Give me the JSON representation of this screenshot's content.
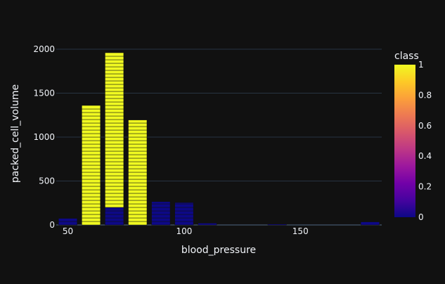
{
  "chart_data": {
    "type": "bar",
    "xlabel": "blood_pressure",
    "ylabel": "packed_cell_volume",
    "x_ticks": [
      "50",
      "100",
      "150"
    ],
    "y_ticks": [
      "0",
      "500",
      "1000",
      "1500",
      "2000"
    ],
    "xlim": [
      45,
      185
    ],
    "ylim": [
      0,
      2080
    ],
    "grid": true,
    "colorbar": {
      "title": "class",
      "range": [
        0,
        1
      ],
      "ticks": [
        "0",
        "0.2",
        "0.4",
        "0.6",
        "0.8",
        "1"
      ],
      "colorscale": [
        "#0d0887",
        "#46039f",
        "#7201a8",
        "#9c179e",
        "#bd3786",
        "#d8576b",
        "#ed7953",
        "#fb9f3a",
        "#fdca26",
        "#f0f921"
      ]
    },
    "bars": [
      {
        "x": 50,
        "class": 0,
        "stack": [
          {
            "class": 0,
            "value": 75
          }
        ]
      },
      {
        "x": 60,
        "stack": [
          {
            "class": 1,
            "value": 1360
          }
        ]
      },
      {
        "x": 70,
        "stack": [
          {
            "class": 0,
            "value": 200
          },
          {
            "class": 1,
            "value": 1760
          }
        ]
      },
      {
        "x": 80,
        "stack": [
          {
            "class": 1,
            "value": 1195
          }
        ]
      },
      {
        "x": 90,
        "stack": [
          {
            "class": 0,
            "value": 265
          }
        ]
      },
      {
        "x": 100,
        "stack": [
          {
            "class": 0,
            "value": 255
          }
        ]
      },
      {
        "x": 110,
        "stack": [
          {
            "class": 0,
            "value": 20
          }
        ]
      },
      {
        "x": 140,
        "stack": [
          {
            "class": 0,
            "value": 10
          }
        ]
      },
      {
        "x": 180,
        "stack": [
          {
            "class": 0,
            "value": 35
          }
        ]
      }
    ],
    "segment_height": 40
  }
}
